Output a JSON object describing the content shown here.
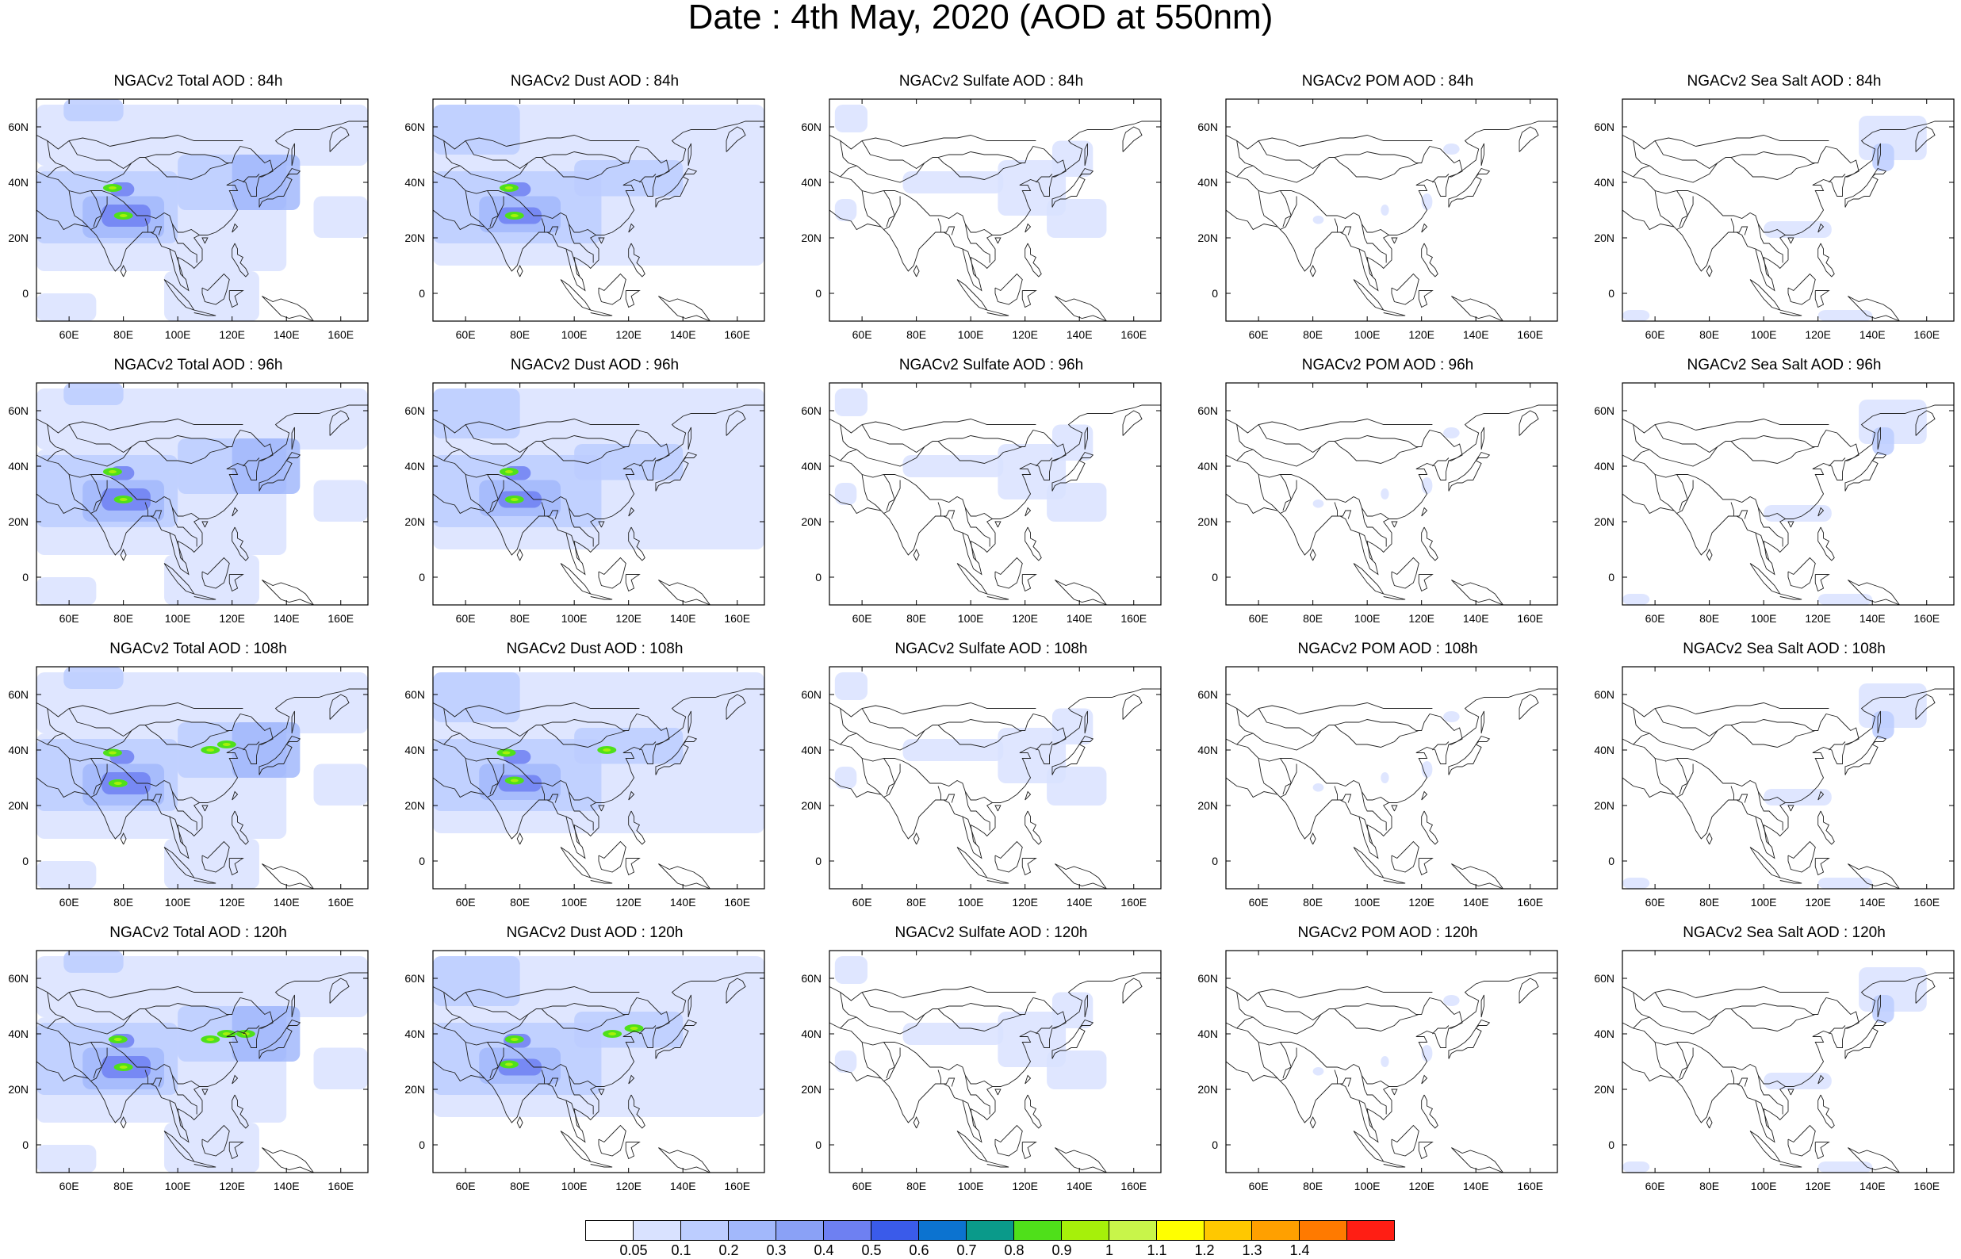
{
  "figure": {
    "title": "Date : 4th May, 2020 (AOD at 550nm)"
  },
  "axes": {
    "lon_range": [
      48,
      170
    ],
    "lat_range": [
      -10,
      70
    ],
    "x_ticks": [
      "60E",
      "80E",
      "100E",
      "120E",
      "140E",
      "160E"
    ],
    "y_ticks": [
      "60N",
      "40N",
      "20N",
      "0"
    ],
    "x_tick_values": [
      60,
      80,
      100,
      120,
      140,
      160
    ],
    "y_tick_values": [
      60,
      40,
      20,
      0
    ]
  },
  "panels": [
    [
      "NGACv2 Total AOD : 84h",
      "NGACv2 Dust AOD : 84h",
      "NGACv2 Sulfate AOD : 84h",
      "NGACv2 POM AOD : 84h",
      "NGACv2 Sea Salt AOD : 84h"
    ],
    [
      "NGACv2 Total AOD : 96h",
      "NGACv2 Dust AOD : 96h",
      "NGACv2 Sulfate AOD : 96h",
      "NGACv2 POM AOD : 96h",
      "NGACv2 Sea Salt AOD : 96h"
    ],
    [
      "NGACv2 Total AOD : 108h",
      "NGACv2 Dust AOD : 108h",
      "NGACv2 Sulfate AOD : 108h",
      "NGACv2 POM AOD : 108h",
      "NGACv2 Sea Salt AOD : 108h"
    ],
    [
      "NGACv2 Total AOD : 120h",
      "NGACv2 Dust AOD : 120h",
      "NGACv2 Sulfate AOD : 120h",
      "NGACv2 POM AOD : 120h",
      "NGACv2 Sea Salt  AOD : 120h"
    ]
  ],
  "colorbar": {
    "labels": [
      "0.05",
      "0.1",
      "0.2",
      "0.3",
      "0.4",
      "0.5",
      "0.6",
      "0.7",
      "0.8",
      "0.9",
      "1",
      "1.1",
      "1.2",
      "1.3",
      "1.4"
    ],
    "colors": [
      "#ffffff",
      "#d9e2ff",
      "#bccdff",
      "#a2b8fb",
      "#8aa1f6",
      "#6e80f2",
      "#3a5bea",
      "#0c73d0",
      "#0a9a8a",
      "#4fe01a",
      "#a6f00a",
      "#c8f54a",
      "#ffff00",
      "#ffc800",
      "#ffa000",
      "#ff7a00",
      "#ff1e14"
    ]
  },
  "aod_levels": {
    "light": "#d9e2ff",
    "medium": "#bccdff",
    "darker": "#a2b8fb",
    "dark": "#8aa1f6",
    "deep": "#6e80f2",
    "green": "#4fe01a",
    "lime": "#a6f00a"
  }
}
